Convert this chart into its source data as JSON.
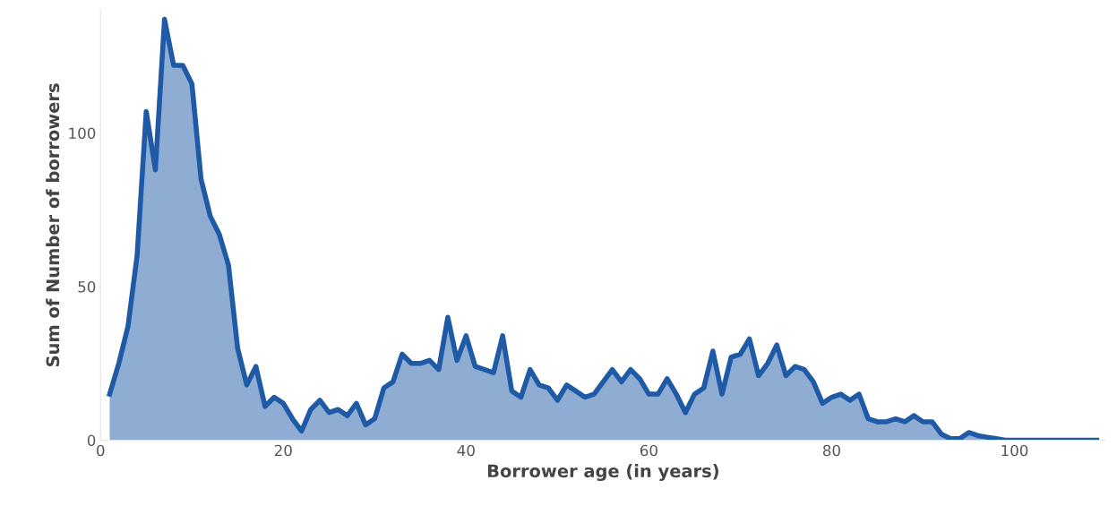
{
  "chart_data": {
    "type": "area",
    "xlabel": "Borrower age (in years)",
    "ylabel": "Sum of Number of borrowers",
    "x": [
      1,
      2,
      3,
      4,
      5,
      6,
      7,
      8,
      9,
      10,
      11,
      12,
      13,
      14,
      15,
      16,
      17,
      18,
      19,
      20,
      21,
      22,
      23,
      24,
      25,
      26,
      27,
      28,
      29,
      30,
      31,
      32,
      33,
      34,
      35,
      36,
      37,
      38,
      39,
      40,
      41,
      42,
      43,
      44,
      45,
      46,
      47,
      48,
      49,
      50,
      51,
      52,
      53,
      54,
      55,
      56,
      57,
      58,
      59,
      60,
      61,
      62,
      63,
      64,
      65,
      66,
      67,
      68,
      69,
      70,
      71,
      72,
      73,
      74,
      75,
      76,
      77,
      78,
      79,
      80,
      81,
      82,
      83,
      84,
      85,
      86,
      87,
      88,
      89,
      90,
      91,
      92,
      93,
      94,
      95,
      96,
      97,
      98,
      99,
      100,
      101,
      102,
      103,
      104,
      105,
      106,
      107,
      108,
      109
    ],
    "series": [
      {
        "color": "#1f5aa6",
        "values": [
          15,
          25,
          37,
          60,
          107,
          88,
          137,
          122,
          122,
          116,
          85,
          73,
          67,
          57,
          30,
          18,
          24,
          11,
          14,
          12,
          7,
          3,
          10,
          13,
          9,
          10,
          8,
          12,
          5,
          7,
          17,
          19,
          28,
          25,
          25,
          26,
          23,
          40,
          26,
          34,
          24,
          23,
          22,
          34,
          16,
          14,
          23,
          18,
          17,
          13,
          18,
          16,
          14,
          15,
          19,
          23,
          19,
          23,
          20,
          15,
          15,
          20,
          15,
          9,
          15,
          17,
          29,
          15,
          27,
          28,
          33,
          21,
          25,
          31,
          21,
          24,
          23,
          19,
          12,
          14,
          15,
          13,
          15,
          7,
          6,
          6,
          7,
          6,
          8,
          6,
          6,
          2,
          0.5,
          0.5,
          2.5,
          1.5,
          1,
          0.5,
          0,
          0,
          0,
          0,
          0,
          0,
          0,
          0,
          0,
          0,
          0
        ]
      }
    ],
    "xlim": [
      0,
      110
    ],
    "xticks": [
      0,
      20,
      40,
      60,
      80,
      100
    ],
    "ylim": [
      0,
      140
    ],
    "yticks": [
      0,
      50,
      100
    ],
    "grid": false
  }
}
